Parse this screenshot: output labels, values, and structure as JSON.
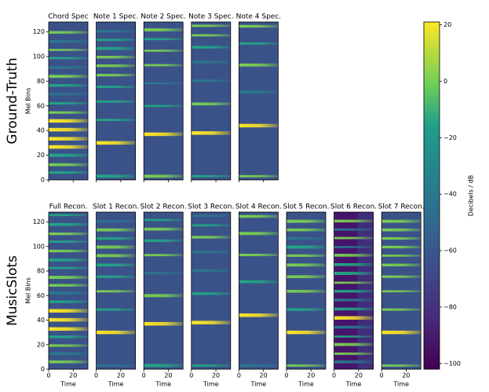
{
  "rows": [
    {
      "label": "Ground-Truth",
      "ylabel": "Mel Bins",
      "panels": [
        "Chord Spec",
        "Note 1 Spec.",
        "Note 2 Spec.",
        "Note 3 Spec.",
        "Note 4 Spec."
      ]
    },
    {
      "label": "MusicSlots",
      "ylabel": "Mel Bins",
      "panels": [
        "Full Recon.",
        "Slot 1 Recon.",
        "Slot 2 Recon.",
        "Slot 3 Recon.",
        "Slot 4 Recon.",
        "Slot 5 Recon.",
        "Slot 6 Recon.",
        "Slot 7 Recon."
      ]
    }
  ],
  "ylim": [
    0,
    128
  ],
  "yticks": [
    0,
    20,
    40,
    60,
    80,
    100,
    120
  ],
  "xlim": [
    0,
    32
  ],
  "xticks": [
    0,
    20
  ],
  "xlabel": "Time",
  "colorbar": {
    "label": "Decibels / dB",
    "lim": [
      -102,
      21
    ],
    "ticks": [
      20,
      0,
      {
        "value": -20,
        "label": "−20"
      },
      {
        "value": -40,
        "label": "−40"
      },
      {
        "value": -60,
        "label": "−60"
      },
      {
        "value": -80,
        "label": "−80"
      },
      {
        "value": -100,
        "label": "−100"
      }
    ]
  }
}
